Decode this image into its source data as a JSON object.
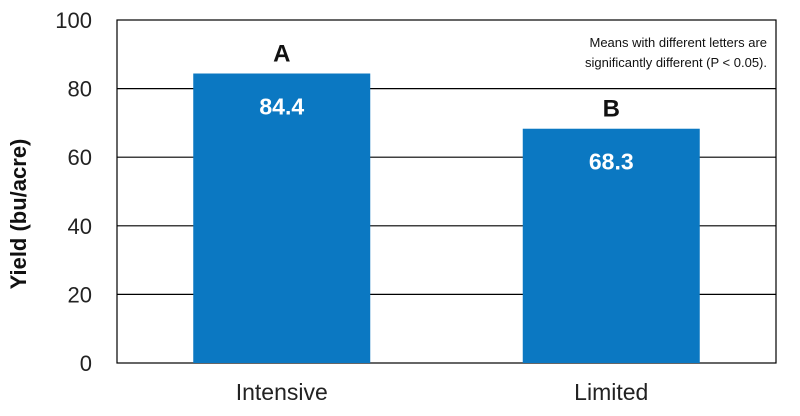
{
  "chart_data": {
    "type": "bar",
    "title": "",
    "xlabel": "",
    "ylabel": "Yield (bu/acre)",
    "ylim": [
      0,
      100
    ],
    "yticks": [
      0,
      20,
      40,
      60,
      80,
      100
    ],
    "grid": true,
    "categories": [
      "Intensive",
      "Limited"
    ],
    "values": [
      84.4,
      68.3
    ],
    "value_labels": [
      "84.4",
      "68.3"
    ],
    "significance_letters": [
      "A",
      "B"
    ],
    "bar_color": "#0B78C2",
    "annotation": {
      "line1": "Means with different  letters are",
      "line2": "significantly different  (P < 0.05)."
    }
  }
}
